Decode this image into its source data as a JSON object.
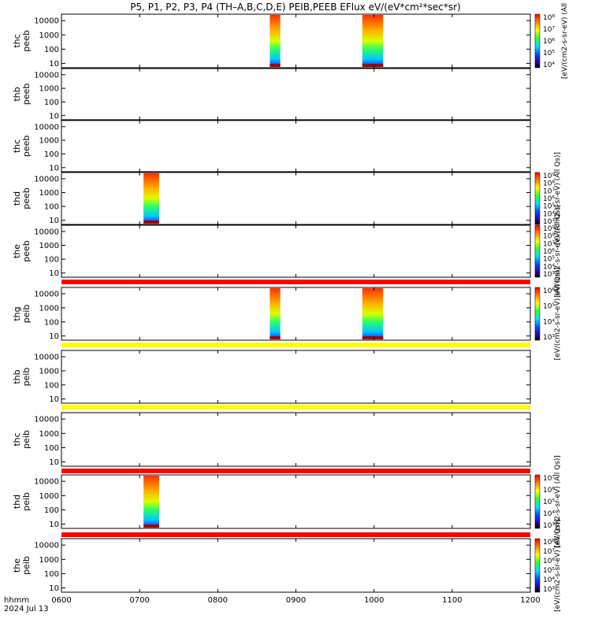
{
  "title": "P5, P1, P2, P3, P4 (TH–A,B,C,D,E) PEIB,PEEB EFlux eV/(eV*cm²*sec*sr)",
  "chart_data": {
    "type": "heatmap",
    "x_unit_label": "hhmm",
    "date": "2024 Jul 13",
    "x_ticks": [
      "0600",
      "0700",
      "0800",
      "0900",
      "1000",
      "1100",
      "1200"
    ],
    "xlim": [
      "0600",
      "1200"
    ],
    "y_scale": "log",
    "y_ticks": [
      "10",
      "100",
      "1000",
      "10000"
    ],
    "panels": [
      {
        "label": [
          "thc",
          "peeb"
        ],
        "has_data": true,
        "bursts": [
          [
            "0840",
            "0848"
          ],
          [
            "0951",
            "1007"
          ]
        ]
      },
      {
        "label": [
          "thb",
          "peeb"
        ],
        "has_data": false,
        "bursts": []
      },
      {
        "label": [
          "thc",
          "peeb"
        ],
        "has_data": false,
        "bursts": []
      },
      {
        "label": [
          "thd",
          "peeb"
        ],
        "has_data": true,
        "bursts": [
          [
            "0703",
            "0715"
          ]
        ]
      },
      {
        "label": [
          "the",
          "peeb"
        ],
        "has_data": false,
        "bursts": []
      },
      {
        "label": [
          "thg",
          "peib"
        ],
        "has_data": true,
        "bursts": [
          [
            "0840",
            "0848"
          ],
          [
            "0951",
            "1007"
          ]
        ]
      },
      {
        "label": [
          "thb",
          "peib"
        ],
        "has_data": false,
        "bursts": []
      },
      {
        "label": [
          "thc",
          "peib"
        ],
        "has_data": false,
        "bursts": []
      },
      {
        "label": [
          "thd",
          "peib"
        ],
        "has_data": true,
        "bursts": [
          [
            "0703",
            "0715"
          ]
        ]
      },
      {
        "label": [
          "the",
          "peib"
        ],
        "has_data": false,
        "bursts": []
      }
    ],
    "status_bars": [
      {
        "color": "#ff0000"
      },
      {
        "color": "#ffff00"
      },
      {
        "color": "#ffff00"
      },
      {
        "color": "#ff0000"
      },
      {
        "color": "#ff0000"
      }
    ],
    "colorbars": [
      {
        "label": "[eV/(cm2-s-sr-eV) (All",
        "ticks": [
          "10⁸",
          "10⁷",
          "10⁶",
          "10⁵",
          "10⁴"
        ]
      },
      {
        "label": "[eV/(cm2-s-sr-eV) (All Qs)]",
        "ticks": [
          "10⁹",
          "10⁸",
          "10⁷",
          "10⁶",
          "10⁵",
          "10⁴",
          "10³"
        ]
      },
      {
        "label": "[eV/(cm2-s-sr-eV) (All Qs)]",
        "ticks": [
          "10⁹",
          "10⁸",
          "10⁷",
          "10⁶",
          "10⁵",
          "10⁴",
          "10³"
        ]
      },
      {
        "label": "[eV/(cm2-s-sr-eV) (All Qs)]",
        "ticks": [
          "10⁶",
          "10⁵",
          "10⁴",
          "10³"
        ]
      },
      {
        "label": "[eV/(cm2-s-sr-eV) (All Qs)]",
        "ticks": [
          "10⁷",
          "10⁶",
          "10⁵",
          "10⁴",
          "10³"
        ]
      },
      {
        "label": "[eV/(cm2-s-sr-eV) (All Qs)]",
        "ticks": [
          "10⁸",
          "10⁷",
          "10⁶",
          "10⁵",
          "10⁴",
          "10³"
        ]
      }
    ]
  }
}
